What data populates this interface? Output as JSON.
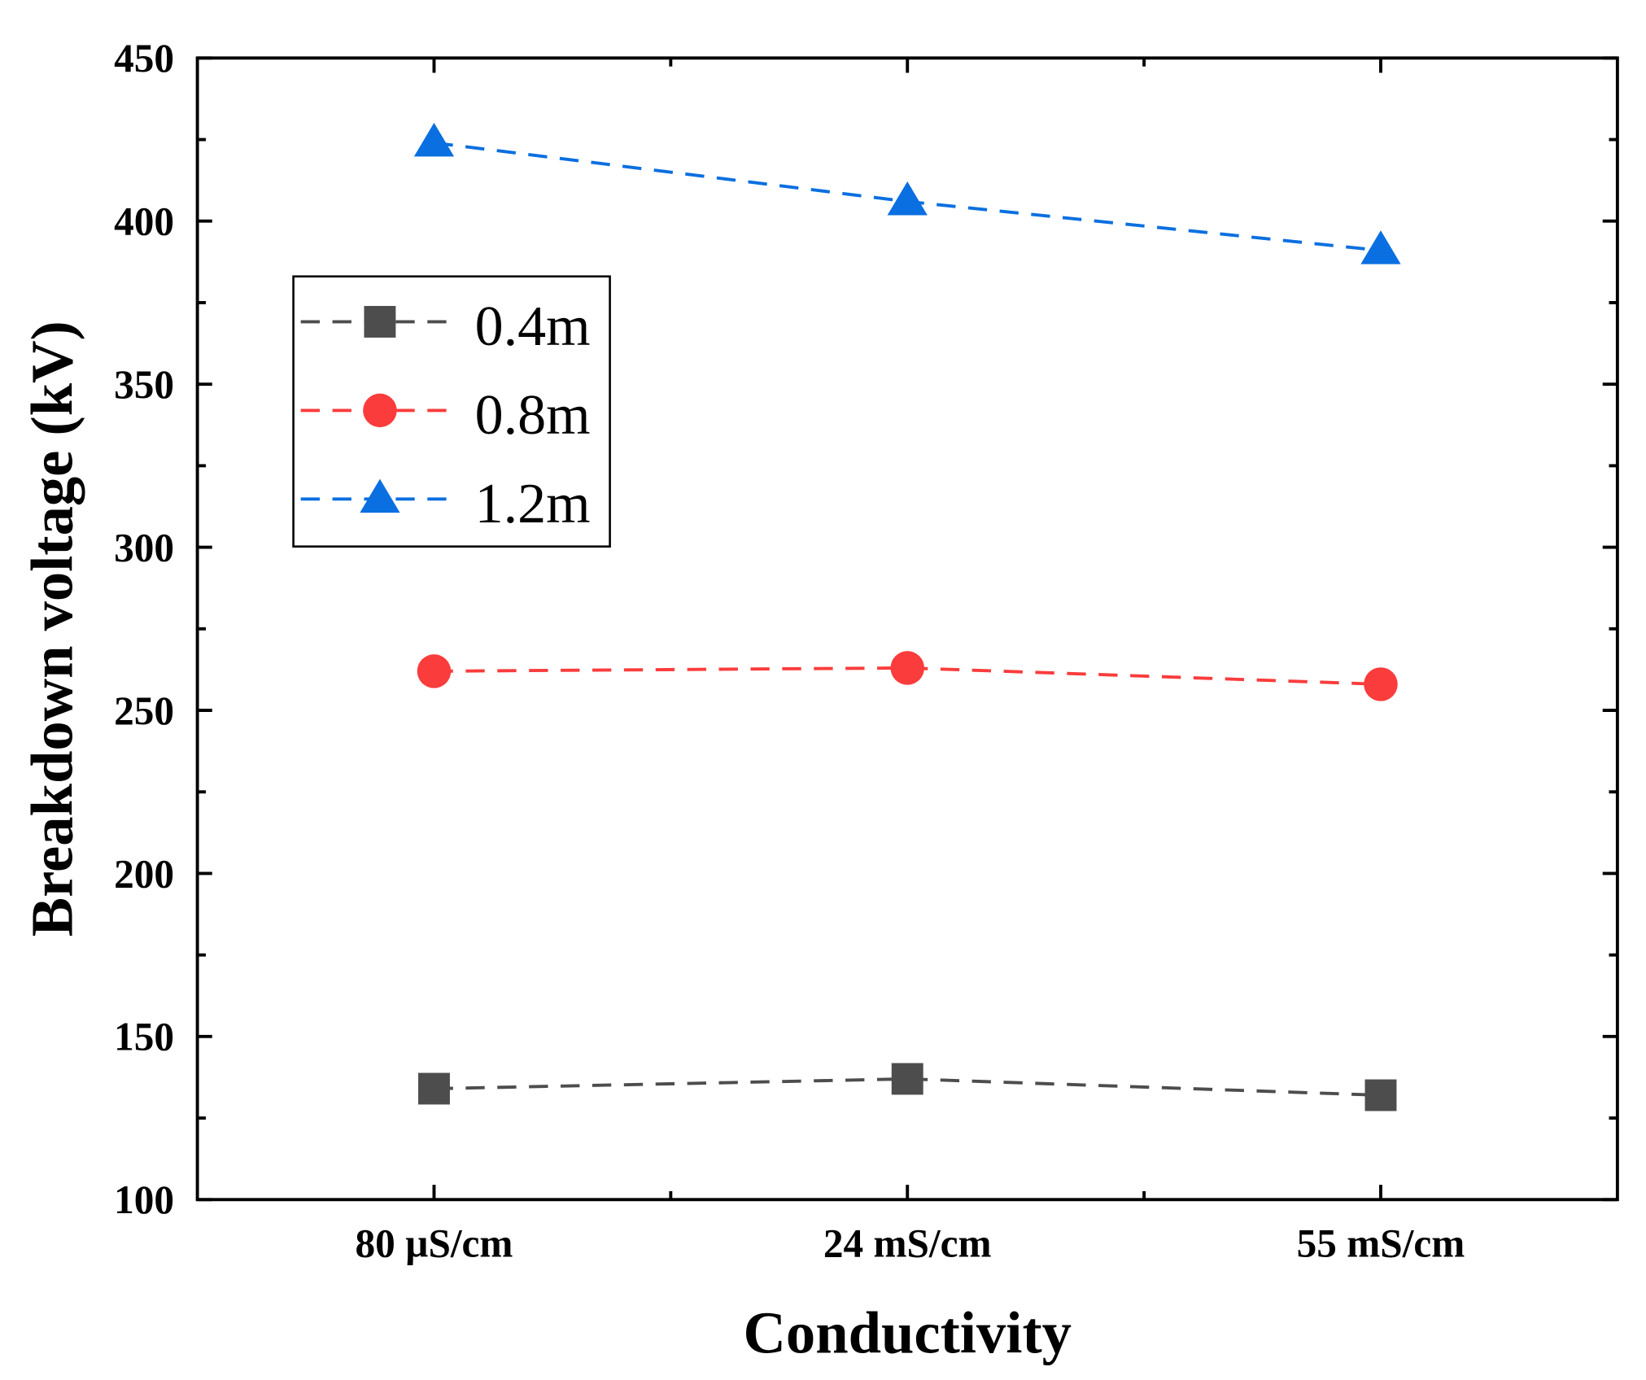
{
  "chart_data": {
    "type": "line",
    "title": "",
    "xlabel": "Conductivity",
    "ylabel": "Breakdown voltage (kV)",
    "categories": [
      "80 µS/cm",
      "24 mS/cm",
      "55 mS/cm"
    ],
    "ylim": [
      100,
      450
    ],
    "yticks": [
      100,
      150,
      200,
      250,
      300,
      350,
      400,
      450
    ],
    "grid": false,
    "legend_position": "upper-left",
    "series": [
      {
        "name": "0.4m",
        "marker": "square",
        "color": "#4d4d4d",
        "values": [
          134,
          137,
          132
        ]
      },
      {
        "name": "0.8m",
        "marker": "circle",
        "color": "#fa3c3c",
        "values": [
          262,
          263,
          258
        ]
      },
      {
        "name": "1.2m",
        "marker": "triangle",
        "color": "#0a6fe0",
        "values": [
          424,
          406,
          391
        ]
      }
    ]
  }
}
